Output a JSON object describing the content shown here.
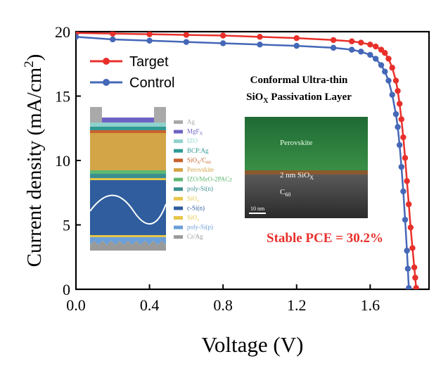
{
  "chart_data": {
    "type": "line",
    "xlabel": "Voltage (V)",
    "ylabel": "Current density (mA/cm²)",
    "xlim": [
      0.0,
      1.92
    ],
    "ylim": [
      0,
      20
    ],
    "x_ticks": [
      "0.0",
      "0.4",
      "0.8",
      "1.2",
      "1.6"
    ],
    "x_tick_values": [
      0.0,
      0.4,
      0.8,
      1.2,
      1.6
    ],
    "y_ticks": [
      "0",
      "5",
      "10",
      "15",
      "20"
    ],
    "y_tick_values": [
      0,
      5,
      10,
      15,
      20
    ],
    "legend_position": "top-left",
    "series": [
      {
        "name": "Target",
        "color": "#e8302b",
        "marker": "circle",
        "x": [
          0.0,
          0.2,
          0.4,
          0.6,
          0.8,
          1.0,
          1.2,
          1.4,
          1.5,
          1.55,
          1.6,
          1.63,
          1.66,
          1.68,
          1.7,
          1.72,
          1.74,
          1.75,
          1.76,
          1.77,
          1.78,
          1.79,
          1.8,
          1.81,
          1.82,
          1.83,
          1.84,
          1.845,
          1.85
        ],
        "y": [
          19.9,
          19.85,
          19.8,
          19.75,
          19.7,
          19.6,
          19.5,
          19.35,
          19.25,
          19.15,
          19.0,
          18.85,
          18.6,
          18.35,
          17.9,
          17.2,
          16.2,
          15.4,
          14.4,
          13.2,
          11.8,
          10.2,
          8.4,
          6.6,
          4.8,
          3.2,
          1.7,
          0.9,
          0.1
        ]
      },
      {
        "name": "Control",
        "color": "#4567b7",
        "marker": "circle",
        "x": [
          0.0,
          0.2,
          0.4,
          0.6,
          0.8,
          1.0,
          1.2,
          1.4,
          1.5,
          1.55,
          1.6,
          1.63,
          1.66,
          1.68,
          1.7,
          1.72,
          1.74,
          1.75,
          1.76,
          1.77,
          1.78,
          1.79,
          1.8,
          1.805,
          1.81
        ],
        "y": [
          19.6,
          19.4,
          19.3,
          19.2,
          19.1,
          19.0,
          18.9,
          18.75,
          18.6,
          18.45,
          18.2,
          17.9,
          17.4,
          16.9,
          16.2,
          15.1,
          13.6,
          12.6,
          11.2,
          9.5,
          7.6,
          5.4,
          3.0,
          1.6,
          0.1
        ]
      }
    ],
    "annotations": {
      "inset_title_line1": "Conformal Ultra-thin",
      "inset_title_line2_prefix": "SiO",
      "inset_title_line2_sub": "X",
      "inset_title_line2_suffix": " Passivation Layer",
      "pce_label": "Stable PCE = 30.2%",
      "tem_perovskite": "Perovskite",
      "tem_sio_prefix": "2 nm SiO",
      "tem_sio_sub": "X",
      "tem_c60_prefix": "C",
      "tem_c60_sub": "60",
      "tem_scalebar": "10 nm"
    },
    "device_stack_layers": [
      {
        "label": "Ag",
        "color": "#a9a9a9"
      },
      {
        "label": "MgF",
        "sub": "X",
        "color": "#6d63c4"
      },
      {
        "label": "IZO",
        "color": "#8fd1cc"
      },
      {
        "label": "BCP:Ag",
        "color": "#2f9a94"
      },
      {
        "label": "SiO",
        "sub": "X",
        "label_tail": "/C",
        "sub2": "60",
        "color": "#c8622b"
      },
      {
        "label": "Perovskite",
        "color": "#d4a546"
      },
      {
        "label": "IZO/MeO-2PACz",
        "color": "#5db873"
      },
      {
        "label": "poly-Si(n)",
        "color": "#3c8f8f"
      },
      {
        "label": "SiO",
        "sub": "x",
        "color": "#e6c64a"
      },
      {
        "label": "c-Si(n)",
        "color": "#2f5d9e"
      },
      {
        "label": "SiO",
        "sub": "x",
        "color": "#e6c64a"
      },
      {
        "label": "poly-Si(p)",
        "color": "#6a9fd8"
      },
      {
        "label": "Cr/Ag",
        "color": "#9a9a9a"
      }
    ]
  }
}
